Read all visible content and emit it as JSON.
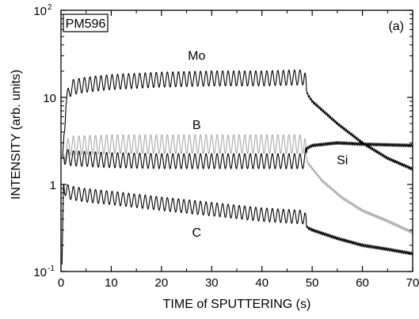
{
  "chart_data": {
    "type": "line",
    "xlabel": "TIME of SPUTTERING (s)",
    "ylabel": "INTENSITY (arb. units)",
    "xlim": [
      0,
      70
    ],
    "ylim": [
      0.1,
      100
    ],
    "yscale": "log",
    "grid": false,
    "sample_label": "PM596",
    "panel_label": "(a)",
    "x_ticks": [
      0,
      10,
      20,
      30,
      40,
      50,
      60,
      70
    ],
    "y_ticks": [
      {
        "value": 0.1,
        "base": "10",
        "exp": "-1"
      },
      {
        "value": 1,
        "base": "1",
        "exp": ""
      },
      {
        "value": 10,
        "base": "10",
        "exp": ""
      },
      {
        "value": 100,
        "base": "10",
        "exp": "2"
      }
    ],
    "series": [
      {
        "name": "Mo",
        "color": "#000000",
        "x": [
          0.3,
          1,
          2,
          5,
          10,
          20,
          30,
          40,
          48.5,
          49,
          50,
          55,
          60,
          65,
          70
        ],
        "y": [
          2,
          9,
          13,
          14,
          15,
          16,
          16.5,
          16.5,
          17,
          11,
          9,
          5,
          3,
          2,
          1.5
        ],
        "oscillation_amplitude": 0.2,
        "oscillation_period_s": 1.1,
        "oscillation_end_s": 48.8
      },
      {
        "name": "B",
        "color": "#aaaaaa",
        "x": [
          0.3,
          1,
          2,
          10,
          20,
          30,
          40,
          48.5,
          49,
          52,
          56,
          60,
          65,
          70
        ],
        "y": [
          2,
          2.5,
          2.8,
          2.9,
          2.9,
          2.9,
          2.9,
          2.9,
          1.8,
          1.1,
          0.7,
          0.5,
          0.38,
          0.28
        ],
        "oscillation_amplitude": 0.25,
        "oscillation_period_s": 1.1,
        "oscillation_end_s": 48.8
      },
      {
        "name": "Si",
        "color": "#000000",
        "x": [
          0.3,
          1,
          2,
          10,
          20,
          30,
          40,
          48.5,
          49,
          50,
          55,
          60,
          65,
          70
        ],
        "y": [
          2,
          2.1,
          2,
          1.9,
          1.85,
          1.85,
          1.85,
          1.85,
          2.6,
          2.8,
          3.0,
          2.9,
          2.85,
          2.8
        ],
        "oscillation_amplitude": 0.2,
        "oscillation_period_s": 1.1,
        "oscillation_end_s": 48.8
      },
      {
        "name": "C",
        "color": "#000000",
        "x": [
          0.2,
          0.5,
          1,
          2,
          5,
          10,
          20,
          30,
          40,
          48.5,
          49,
          50,
          55,
          60,
          65,
          70
        ],
        "y": [
          0.12,
          1.0,
          0.85,
          0.8,
          0.75,
          0.7,
          0.6,
          0.52,
          0.45,
          0.42,
          0.32,
          0.3,
          0.24,
          0.2,
          0.18,
          0.16
        ],
        "oscillation_amplitude": 0.18,
        "oscillation_period_s": 1.1,
        "oscillation_end_s": 48.8
      }
    ],
    "curve_labels": [
      {
        "text": "Mo",
        "x": 27,
        "y": 30
      },
      {
        "text": "B",
        "x": 27,
        "y": 4.8
      },
      {
        "text": "Si",
        "x": 56,
        "y": 1.9
      },
      {
        "text": "C",
        "x": 27,
        "y": 0.28
      }
    ]
  }
}
